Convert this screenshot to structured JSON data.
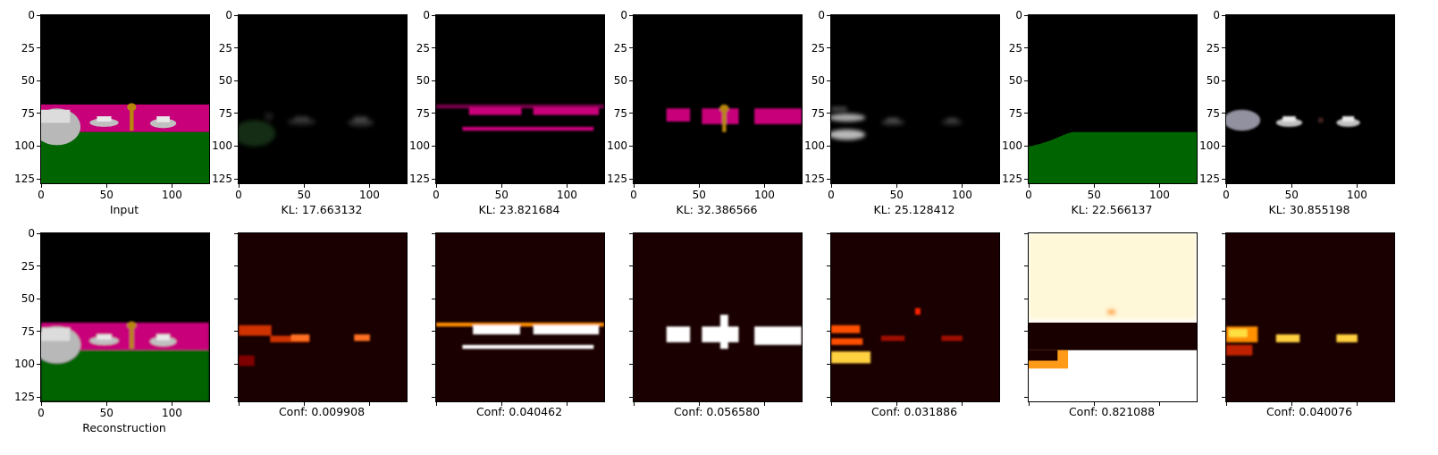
{
  "axis": {
    "x_ticks": [
      "0",
      "50",
      "100"
    ],
    "y_ticks": [
      "0",
      "25",
      "50",
      "75",
      "100",
      "125"
    ],
    "xlim": [
      0,
      127
    ],
    "ylim": [
      0,
      127
    ]
  },
  "row1": [
    {
      "caption": "Input",
      "image": "scene"
    },
    {
      "caption": "KL: 17.663132",
      "image": "slot-dark-cars"
    },
    {
      "caption": "KL: 23.821684",
      "image": "slot-magenta-wall"
    },
    {
      "caption": "KL: 32.386566",
      "image": "slot-magenta-hydrant"
    },
    {
      "caption": "KL: 25.128412",
      "image": "slot-left-car"
    },
    {
      "caption": "KL: 22.566137",
      "image": "slot-green-ground"
    },
    {
      "caption": "KL: 30.855198",
      "image": "slot-cars"
    }
  ],
  "row2": [
    {
      "caption": "Reconstruction",
      "image": "scene-reconstruction"
    },
    {
      "caption": "Conf: 0.009908",
      "image": "heatmap"
    },
    {
      "caption": "Conf: 0.040462",
      "image": "heatmap"
    },
    {
      "caption": "Conf: 0.056580",
      "image": "heatmap"
    },
    {
      "caption": "Conf: 0.031886",
      "image": "heatmap"
    },
    {
      "caption": "Conf: 0.821088",
      "image": "heatmap"
    },
    {
      "caption": "Conf: 0.040076",
      "image": "heatmap"
    }
  ],
  "colors": {
    "sky": "#000000",
    "wall": "#c8007a",
    "ground": "#006400",
    "hydrant": "#b8860b",
    "car": "#c0c0c0",
    "heat_low": "#1a0000",
    "heat_mid": "#d03000",
    "heat_high": "#ffffff"
  }
}
